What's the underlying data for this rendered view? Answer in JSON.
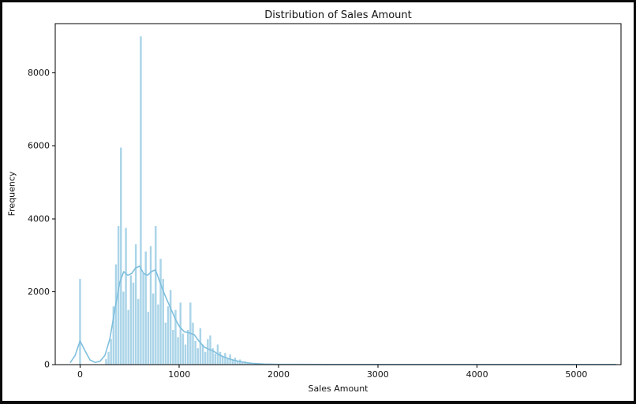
{
  "chart_data": {
    "type": "histogram",
    "title": "Distribution of Sales Amount",
    "xlabel": "Sales Amount",
    "ylabel": "Frequency",
    "xlim": [
      -250,
      5450
    ],
    "ylim": [
      0,
      9350
    ],
    "x_ticks": [
      0,
      1000,
      2000,
      3000,
      4000,
      5000
    ],
    "y_ticks": [
      0,
      2000,
      4000,
      6000,
      8000
    ],
    "grid": false,
    "legend": false,
    "bin_width": 25,
    "bar_color": "#aad4e8",
    "kde_color": "#7fbfdd",
    "axis_color": "#000000",
    "bars": [
      [
        0,
        2350
      ],
      [
        262,
        150
      ],
      [
        287,
        350
      ],
      [
        312,
        700
      ],
      [
        337,
        1600
      ],
      [
        362,
        2750
      ],
      [
        387,
        3800
      ],
      [
        412,
        5950
      ],
      [
        437,
        2000
      ],
      [
        462,
        3750
      ],
      [
        487,
        1500
      ],
      [
        512,
        2450
      ],
      [
        537,
        2250
      ],
      [
        562,
        3300
      ],
      [
        587,
        1800
      ],
      [
        612,
        9000
      ],
      [
        637,
        2500
      ],
      [
        662,
        3100
      ],
      [
        687,
        1450
      ],
      [
        712,
        3250
      ],
      [
        737,
        1950
      ],
      [
        762,
        3800
      ],
      [
        787,
        1650
      ],
      [
        812,
        2900
      ],
      [
        837,
        2350
      ],
      [
        862,
        1150
      ],
      [
        887,
        1600
      ],
      [
        912,
        2050
      ],
      [
        937,
        950
      ],
      [
        962,
        1500
      ],
      [
        987,
        750
      ],
      [
        1012,
        1700
      ],
      [
        1037,
        850
      ],
      [
        1062,
        550
      ],
      [
        1087,
        950
      ],
      [
        1112,
        1700
      ],
      [
        1137,
        1150
      ],
      [
        1162,
        650
      ],
      [
        1187,
        450
      ],
      [
        1212,
        1000
      ],
      [
        1237,
        550
      ],
      [
        1262,
        350
      ],
      [
        1287,
        700
      ],
      [
        1312,
        800
      ],
      [
        1337,
        450
      ],
      [
        1362,
        300
      ],
      [
        1387,
        550
      ],
      [
        1412,
        350
      ],
      [
        1437,
        220
      ],
      [
        1462,
        320
      ],
      [
        1487,
        180
      ],
      [
        1512,
        280
      ],
      [
        1537,
        140
      ],
      [
        1562,
        190
      ],
      [
        1587,
        90
      ],
      [
        1612,
        140
      ],
      [
        1637,
        70
      ],
      [
        1662,
        90
      ],
      [
        1687,
        50
      ],
      [
        1712,
        30
      ],
      [
        1737,
        15
      ]
    ],
    "kde": [
      [
        -100,
        50
      ],
      [
        -50,
        250
      ],
      [
        0,
        650
      ],
      [
        50,
        380
      ],
      [
        100,
        130
      ],
      [
        150,
        60
      ],
      [
        200,
        90
      ],
      [
        250,
        250
      ],
      [
        300,
        700
      ],
      [
        350,
        1500
      ],
      [
        400,
        2250
      ],
      [
        440,
        2550
      ],
      [
        480,
        2450
      ],
      [
        520,
        2500
      ],
      [
        560,
        2650
      ],
      [
        600,
        2700
      ],
      [
        640,
        2500
      ],
      [
        680,
        2450
      ],
      [
        720,
        2550
      ],
      [
        760,
        2600
      ],
      [
        800,
        2300
      ],
      [
        840,
        2000
      ],
      [
        880,
        1750
      ],
      [
        920,
        1500
      ],
      [
        960,
        1250
      ],
      [
        1000,
        1050
      ],
      [
        1050,
        900
      ],
      [
        1100,
        870
      ],
      [
        1150,
        820
      ],
      [
        1200,
        640
      ],
      [
        1250,
        480
      ],
      [
        1300,
        420
      ],
      [
        1350,
        360
      ],
      [
        1400,
        270
      ],
      [
        1450,
        210
      ],
      [
        1500,
        160
      ],
      [
        1550,
        120
      ],
      [
        1600,
        90
      ],
      [
        1650,
        65
      ],
      [
        1700,
        45
      ],
      [
        1750,
        30
      ],
      [
        1850,
        15
      ],
      [
        2000,
        8
      ],
      [
        2500,
        5
      ],
      [
        3000,
        5
      ],
      [
        3500,
        5
      ],
      [
        4000,
        5
      ],
      [
        4500,
        5
      ],
      [
        5000,
        5
      ],
      [
        5400,
        5
      ]
    ]
  }
}
